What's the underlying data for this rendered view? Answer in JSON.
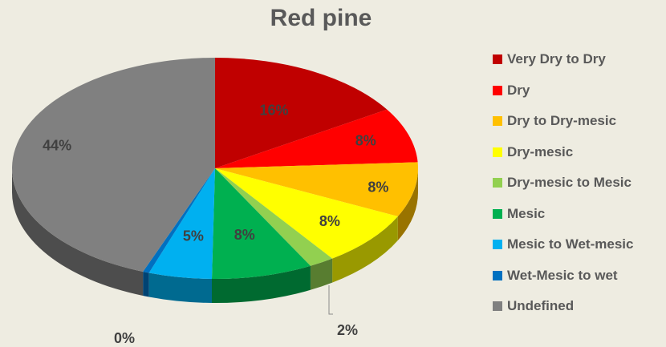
{
  "chart_data": {
    "type": "pie",
    "title": "Red pine",
    "slices": [
      {
        "name": "Very Dry to Dry",
        "value": 16,
        "label": "16%",
        "color": "#C00000"
      },
      {
        "name": "Dry",
        "value": 8,
        "label": "8%",
        "color": "#FF0000"
      },
      {
        "name": "Dry to Dry-mesic",
        "value": 8,
        "label": "8%",
        "color": "#FFC000"
      },
      {
        "name": "Dry-mesic",
        "value": 8,
        "label": "8%",
        "color": "#FFFF00"
      },
      {
        "name": "Dry-mesic to Mesic",
        "value": 2,
        "label": "2%",
        "color": "#92D050"
      },
      {
        "name": "Mesic",
        "value": 8,
        "label": "8%",
        "color": "#00B050"
      },
      {
        "name": "Mesic to Wet-mesic",
        "value": 5,
        "label": "5%",
        "color": "#00B0F0"
      },
      {
        "name": "Wet-Mesic to wet",
        "value": 0.5,
        "label": "0%",
        "color": "#0070C0"
      },
      {
        "name": "Undefined",
        "value": 44,
        "label": "44%",
        "color": "#808080"
      }
    ],
    "legend_position": "right",
    "style": "3d"
  }
}
